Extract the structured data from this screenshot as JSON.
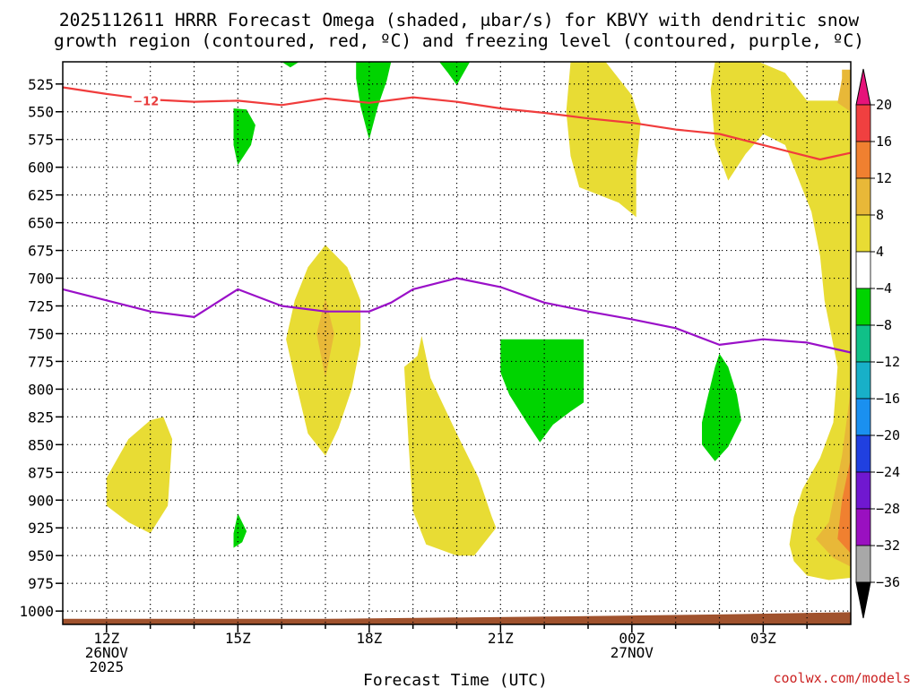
{
  "chart_data": {
    "type": "contour",
    "title_line1": "2025112611 HRRR Forecast Omega (shaded, μbar/s) for KBVY with dendritic snow",
    "title_line2": "growth region (contoured, red, ºC) and freezing level (contoured, purple, ºC)",
    "xlabel": "Forecast Time (UTC)",
    "credit": "coolwx.com/models",
    "x_range_hours": [
      11,
      29
    ],
    "x_ticks": [
      {
        "h": 12,
        "lines": [
          "12Z",
          "26NOV",
          "2025"
        ]
      },
      {
        "h": 15,
        "lines": [
          "15Z"
        ]
      },
      {
        "h": 18,
        "lines": [
          "18Z"
        ]
      },
      {
        "h": 21,
        "lines": [
          "21Z"
        ]
      },
      {
        "h": 24,
        "lines": [
          "00Z",
          "27NOV"
        ]
      },
      {
        "h": 27,
        "lines": [
          "03Z"
        ]
      }
    ],
    "y_range_hpa": [
      505,
      1012
    ],
    "y_ticks": [
      525,
      550,
      575,
      600,
      625,
      650,
      675,
      700,
      725,
      750,
      775,
      800,
      825,
      850,
      875,
      900,
      925,
      950,
      975,
      1000
    ],
    "colorbar": {
      "levels": [
        20,
        16,
        12,
        8,
        4,
        -4,
        -8,
        -12,
        -16,
        -20,
        -24,
        -28,
        -32,
        -36
      ],
      "colors": [
        "#e6137a",
        "#f04040",
        "#f08030",
        "#e8b838",
        "#e8dc34",
        "#ffffff",
        "#00d400",
        "#10c088",
        "#18b0c8",
        "#1a90f0",
        "#2040e0",
        "#7018d0",
        "#9a10c0",
        "#a8a8a8",
        "#000000"
      ]
    },
    "contour_minus12": {
      "label": "−12",
      "label_at": {
        "h": 12.9,
        "p": 540
      },
      "points": [
        [
          11,
          528
        ],
        [
          12,
          534
        ],
        [
          13,
          539
        ],
        [
          14,
          541
        ],
        [
          15,
          540
        ],
        [
          16,
          544
        ],
        [
          17,
          538
        ],
        [
          18,
          542
        ],
        [
          19,
          537
        ],
        [
          20,
          541
        ],
        [
          21,
          547
        ],
        [
          22,
          551
        ],
        [
          23,
          556
        ],
        [
          24,
          560
        ],
        [
          25,
          566
        ],
        [
          26,
          570
        ],
        [
          27,
          580
        ],
        [
          28,
          590
        ],
        [
          28.3,
          593
        ],
        [
          29,
          587
        ]
      ]
    },
    "freezing_level": {
      "points": [
        [
          11,
          710
        ],
        [
          12,
          720
        ],
        [
          13,
          730
        ],
        [
          14,
          735
        ],
        [
          15,
          710
        ],
        [
          16,
          725
        ],
        [
          17,
          730
        ],
        [
          18,
          730
        ],
        [
          18.5,
          722
        ],
        [
          19,
          710
        ],
        [
          20,
          700
        ],
        [
          21,
          708
        ],
        [
          22,
          722
        ],
        [
          23,
          730
        ],
        [
          24,
          737
        ],
        [
          25,
          745
        ],
        [
          26,
          760
        ],
        [
          27,
          755
        ],
        [
          28,
          758
        ],
        [
          29,
          767
        ]
      ]
    },
    "omega_regions": [
      {
        "value": -6,
        "points": [
          [
            16.0,
            505
          ],
          [
            16.4,
            505
          ],
          [
            16.2,
            510
          ]
        ]
      },
      {
        "value": -6,
        "points": [
          [
            14.9,
            547
          ],
          [
            15.2,
            548
          ],
          [
            15.4,
            562
          ],
          [
            15.3,
            580
          ],
          [
            15.0,
            598
          ],
          [
            14.9,
            580
          ]
        ]
      },
      {
        "value": -6,
        "points": [
          [
            17.7,
            505
          ],
          [
            18.5,
            505
          ],
          [
            18.4,
            522
          ],
          [
            18.2,
            545
          ],
          [
            18.0,
            575
          ],
          [
            17.8,
            545
          ],
          [
            17.7,
            520
          ]
        ]
      },
      {
        "value": -6,
        "points": [
          [
            19.6,
            505
          ],
          [
            20.3,
            505
          ],
          [
            20.0,
            526
          ],
          [
            19.8,
            515
          ]
        ]
      },
      {
        "value": -6,
        "points": [
          [
            21.0,
            755
          ],
          [
            22.9,
            755
          ],
          [
            22.9,
            812
          ],
          [
            22.6,
            820
          ],
          [
            22.2,
            832
          ],
          [
            21.9,
            848
          ],
          [
            21.6,
            830
          ],
          [
            21.2,
            805
          ],
          [
            21.0,
            785
          ]
        ]
      },
      {
        "value": -6,
        "points": [
          [
            25.7,
            812
          ],
          [
            25.9,
            780
          ],
          [
            26.0,
            768
          ],
          [
            26.2,
            780
          ],
          [
            26.4,
            805
          ],
          [
            26.5,
            828
          ],
          [
            26.2,
            852
          ],
          [
            25.9,
            865
          ],
          [
            25.6,
            850
          ],
          [
            25.6,
            830
          ]
        ]
      },
      {
        "value": -6,
        "points": [
          [
            14.9,
            943
          ],
          [
            15.1,
            938
          ],
          [
            15.2,
            928
          ],
          [
            15.0,
            912
          ],
          [
            14.9,
            930
          ]
        ]
      },
      {
        "value": 6,
        "points": [
          [
            22.6,
            505
          ],
          [
            23.4,
            505
          ],
          [
            24.0,
            535
          ],
          [
            24.2,
            560
          ],
          [
            24.1,
            600
          ],
          [
            24.1,
            645
          ],
          [
            23.7,
            632
          ],
          [
            22.8,
            618
          ],
          [
            22.6,
            590
          ],
          [
            22.5,
            550
          ]
        ]
      },
      {
        "value": 6,
        "points": [
          [
            25.9,
            505
          ],
          [
            26.9,
            505
          ],
          [
            27.5,
            515
          ],
          [
            28.0,
            540
          ],
          [
            29,
            540
          ],
          [
            29,
            970
          ],
          [
            28.5,
            972
          ],
          [
            28.0,
            968
          ],
          [
            27.7,
            955
          ],
          [
            27.6,
            940
          ],
          [
            27.7,
            915
          ],
          [
            27.9,
            890
          ],
          [
            28.3,
            862
          ],
          [
            28.6,
            830
          ],
          [
            28.7,
            780
          ],
          [
            28.4,
            720
          ],
          [
            28.3,
            680
          ],
          [
            28.1,
            640
          ],
          [
            27.8,
            610
          ],
          [
            27.5,
            580
          ],
          [
            27.0,
            570
          ],
          [
            26.6,
            588
          ],
          [
            26.2,
            612
          ],
          [
            25.9,
            580
          ],
          [
            25.8,
            530
          ]
        ]
      },
      {
        "value": 6,
        "points": [
          [
            16.3,
            720
          ],
          [
            16.6,
            690
          ],
          [
            17.0,
            670
          ],
          [
            17.5,
            690
          ],
          [
            17.8,
            720
          ],
          [
            17.8,
            760
          ],
          [
            17.6,
            800
          ],
          [
            17.3,
            835
          ],
          [
            17.0,
            860
          ],
          [
            16.6,
            840
          ],
          [
            16.3,
            790
          ],
          [
            16.1,
            755
          ]
        ]
      },
      {
        "value": 6,
        "points": [
          [
            12.0,
            880
          ],
          [
            12.5,
            845
          ],
          [
            13.0,
            828
          ],
          [
            13.3,
            825
          ],
          [
            13.5,
            845
          ],
          [
            13.4,
            905
          ],
          [
            13.0,
            930
          ],
          [
            12.5,
            920
          ],
          [
            12.0,
            905
          ]
        ]
      },
      {
        "value": 6,
        "points": [
          [
            18.8,
            780
          ],
          [
            19.1,
            770
          ],
          [
            19.2,
            752
          ],
          [
            19.4,
            790
          ],
          [
            20.0,
            840
          ],
          [
            20.5,
            880
          ],
          [
            20.8,
            915
          ],
          [
            20.9,
            925
          ],
          [
            20.4,
            950
          ],
          [
            20.0,
            950
          ],
          [
            19.3,
            940
          ],
          [
            19.0,
            910
          ],
          [
            18.9,
            850
          ]
        ]
      },
      {
        "value": 10,
        "points": [
          [
            16.8,
            750
          ],
          [
            17.0,
            718
          ],
          [
            17.2,
            750
          ],
          [
            17.0,
            790
          ]
        ]
      },
      {
        "value": 10,
        "points": [
          [
            28.8,
            512
          ],
          [
            29,
            512
          ],
          [
            29,
            550
          ],
          [
            28.7,
            542
          ],
          [
            28.8,
            520
          ]
        ]
      },
      {
        "value": 10,
        "points": [
          [
            29,
            800
          ],
          [
            29,
            960
          ],
          [
            28.6,
            952
          ],
          [
            28.2,
            935
          ],
          [
            28.5,
            920
          ],
          [
            28.8,
            860
          ]
        ]
      },
      {
        "value": 14,
        "points": [
          [
            29,
            862
          ],
          [
            29,
            948
          ],
          [
            28.7,
            935
          ],
          [
            28.8,
            900
          ]
        ]
      }
    ]
  }
}
